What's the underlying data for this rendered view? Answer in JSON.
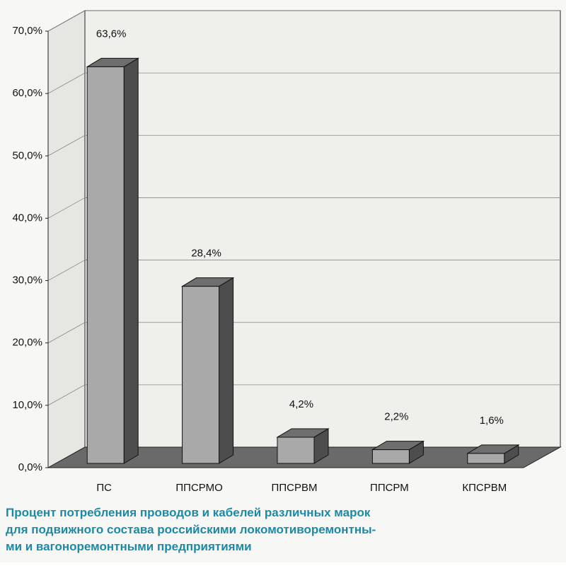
{
  "chart_data": {
    "type": "bar3d",
    "title": [
      "Процент потребления проводов и кабелей различных марок",
      "для подвижного состава российскими локомотиворемонтны-",
      "ми и вагоноремонтными предприятиями"
    ],
    "categories": [
      "ПС",
      "ППСРМО",
      "ППСРВМ",
      "ППСРМ",
      "КПСРВМ"
    ],
    "values": [
      63.6,
      28.4,
      4.2,
      2.2,
      1.6
    ],
    "value_labels": [
      "63,6%",
      "28,4%",
      "4,2%",
      "2,2%",
      "1,6%"
    ],
    "color": "#a9a9a9",
    "ylim": [
      0,
      70
    ],
    "yticks": [
      {
        "value": 0,
        "label": "0,0%"
      },
      {
        "value": 10,
        "label": "10,0%"
      },
      {
        "value": 20,
        "label": "20,0%"
      },
      {
        "value": 30,
        "label": "30,0%"
      },
      {
        "value": 40,
        "label": "40,0%"
      },
      {
        "value": 50,
        "label": "50,0%"
      },
      {
        "value": 60,
        "label": "60,0%"
      },
      {
        "value": 70,
        "label": "70,0%"
      }
    ],
    "grid": true
  }
}
